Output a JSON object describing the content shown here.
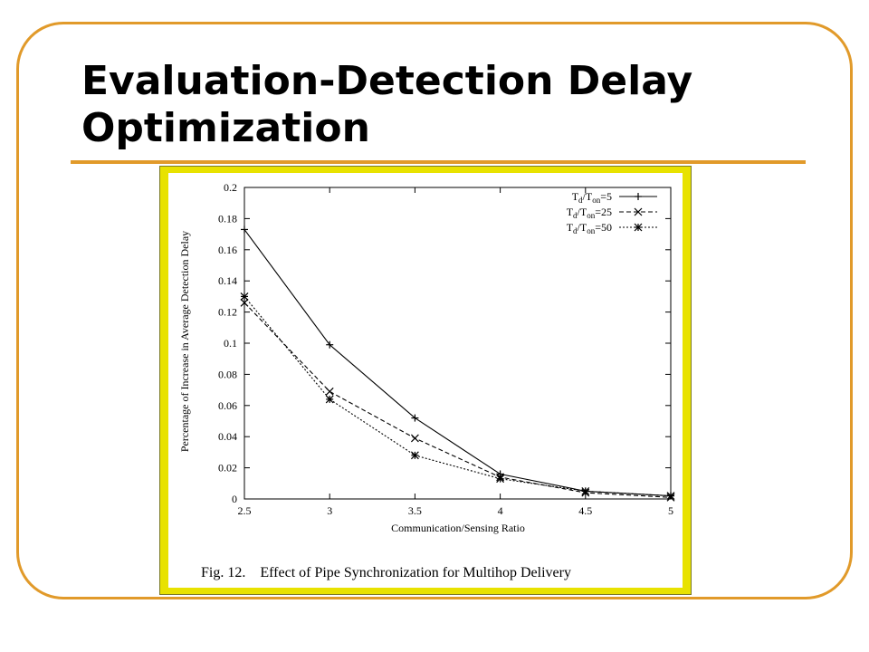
{
  "slide": {
    "title": "Evaluation-Detection Delay Optimization",
    "accent_color": "#e19a2a",
    "figure_border_color": "#e8e200"
  },
  "chart_data": {
    "type": "line",
    "title": "",
    "xlabel": "Communication/Sensing Ratio",
    "ylabel": "Percentage of Increase in Average Detection Delay",
    "xlim": [
      2.5,
      5
    ],
    "ylim": [
      0,
      0.2
    ],
    "x_ticks": [
      "2.5",
      "3",
      "3.5",
      "4",
      "4.5",
      "5"
    ],
    "y_ticks": [
      "0",
      "0.02",
      "0.04",
      "0.06",
      "0.08",
      "0.1",
      "0.12",
      "0.14",
      "0.16",
      "0.18",
      "0.2"
    ],
    "x": [
      2.5,
      3,
      3.5,
      4,
      4.5,
      5
    ],
    "series": [
      {
        "name_main": "T",
        "name_sub1": "d",
        "name_mid": "/T",
        "name_sub2": "on",
        "name_tail": "=5",
        "marker": "+",
        "dash": "solid",
        "values": [
          0.173,
          0.099,
          0.052,
          0.016,
          0.005,
          0.002
        ]
      },
      {
        "name_main": "T",
        "name_sub1": "d",
        "name_mid": "/T",
        "name_sub2": "on",
        "name_tail": "=25",
        "marker": "x",
        "dash": "dashed",
        "values": [
          0.126,
          0.069,
          0.039,
          0.014,
          0.004,
          0.001
        ]
      },
      {
        "name_main": "T",
        "name_sub1": "d",
        "name_mid": "/T",
        "name_sub2": "on",
        "name_tail": "=50",
        "marker": "*",
        "dash": "dotted",
        "values": [
          0.13,
          0.064,
          0.028,
          0.013,
          0.005,
          0.002
        ]
      }
    ],
    "legend_position": "top-right",
    "grid": false,
    "caption": "Fig. 12.    Effect of Pipe Synchronization for Multihop Delivery"
  }
}
